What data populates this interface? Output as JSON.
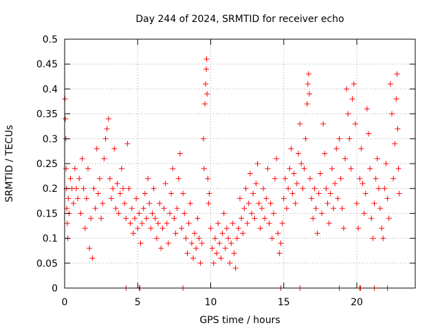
{
  "chart_data": {
    "type": "scatter",
    "title": "Day 244 of 2024, SRMTID for receiver echo",
    "xlabel": "GPS time / hours",
    "ylabel": "SRMTID / TECUs",
    "xlim": [
      0,
      24
    ],
    "ylim": [
      0,
      0.5
    ],
    "grid": true,
    "marker": "+",
    "color": "#ff0000",
    "x_ticks": [
      0,
      5,
      10,
      15,
      20
    ],
    "x_tick_labels": [
      "0",
      "5",
      "10",
      "15",
      "20"
    ],
    "y_ticks": [
      0,
      0.05,
      0.1,
      0.15,
      0.2,
      0.25,
      0.3,
      0.35,
      0.4,
      0.45,
      0.5
    ],
    "y_tick_labels": [
      "0",
      "0.05",
      "0.1",
      "0.15",
      "0.2",
      "0.25",
      "0.3",
      "0.35",
      "0.4",
      "0.45",
      "0.5"
    ],
    "series": [
      {
        "name": "SRMTID",
        "points": [
          [
            0.02,
            0.38
          ],
          [
            0.05,
            0.34
          ],
          [
            0.08,
            0.3
          ],
          [
            0.1,
            0.24
          ],
          [
            0.13,
            0.2
          ],
          [
            0.15,
            0.16
          ],
          [
            0.18,
            0.13
          ],
          [
            0.22,
            0.1
          ],
          [
            0.25,
            0.18
          ],
          [
            0.3,
            0.15
          ],
          [
            0.4,
            0.22
          ],
          [
            0.5,
            0.2
          ],
          [
            0.6,
            0.17
          ],
          [
            0.7,
            0.24
          ],
          [
            0.8,
            0.2
          ],
          [
            0.9,
            0.18
          ],
          [
            1.0,
            0.22
          ],
          [
            1.1,
            0.15
          ],
          [
            1.2,
            0.26
          ],
          [
            1.3,
            0.2
          ],
          [
            1.4,
            0.12
          ],
          [
            1.5,
            0.18
          ],
          [
            1.6,
            0.24
          ],
          [
            1.7,
            0.08
          ],
          [
            1.8,
            0.14
          ],
          [
            1.9,
            0.06
          ],
          [
            2.0,
            0.2
          ],
          [
            2.1,
            0.16
          ],
          [
            2.2,
            0.28
          ],
          [
            2.3,
            0.19
          ],
          [
            2.4,
            0.22
          ],
          [
            2.5,
            0.14
          ],
          [
            2.6,
            0.17
          ],
          [
            2.7,
            0.26
          ],
          [
            2.8,
            0.3
          ],
          [
            2.9,
            0.32
          ],
          [
            3.0,
            0.34
          ],
          [
            3.1,
            0.22
          ],
          [
            3.2,
            0.18
          ],
          [
            3.3,
            0.2
          ],
          [
            3.4,
            0.28
          ],
          [
            3.5,
            0.16
          ],
          [
            3.6,
            0.21
          ],
          [
            3.7,
            0.15
          ],
          [
            3.8,
            0.19
          ],
          [
            3.9,
            0.24
          ],
          [
            4.0,
            0.2
          ],
          [
            4.1,
            0.17
          ],
          [
            4.2,
            0.14
          ],
          [
            4.3,
            0.29
          ],
          [
            4.4,
            0.2
          ],
          [
            4.5,
            0.13
          ],
          [
            4.6,
            0.16
          ],
          [
            4.7,
            0.11
          ],
          [
            4.8,
            0.14
          ],
          [
            4.9,
            0.18
          ],
          [
            5.0,
            0.12
          ],
          [
            5.1,
            0.15
          ],
          [
            5.2,
            0.09
          ],
          [
            5.3,
            0.13
          ],
          [
            5.4,
            0.16
          ],
          [
            5.5,
            0.19
          ],
          [
            5.6,
            0.14
          ],
          [
            5.7,
            0.22
          ],
          [
            5.8,
            0.17
          ],
          [
            5.9,
            0.12
          ],
          [
            6.0,
            0.15
          ],
          [
            6.1,
            0.2
          ],
          [
            6.2,
            0.14
          ],
          [
            6.3,
            0.1
          ],
          [
            6.4,
            0.13
          ],
          [
            6.5,
            0.17
          ],
          [
            6.6,
            0.08
          ],
          [
            6.7,
            0.12
          ],
          [
            6.8,
            0.16
          ],
          [
            6.9,
            0.21
          ],
          [
            7.0,
            0.13
          ],
          [
            7.1,
            0.09
          ],
          [
            7.2,
            0.15
          ],
          [
            7.3,
            0.19
          ],
          [
            7.4,
            0.24
          ],
          [
            7.5,
            0.14
          ],
          [
            7.6,
            0.11
          ],
          [
            7.7,
            0.16
          ],
          [
            7.8,
            0.22
          ],
          [
            7.9,
            0.27
          ],
          [
            8.0,
            0.12
          ],
          [
            8.1,
            0.19
          ],
          [
            8.2,
            0.15
          ],
          [
            8.3,
            0.1
          ],
          [
            8.4,
            0.07
          ],
          [
            8.5,
            0.13
          ],
          [
            8.6,
            0.17
          ],
          [
            8.7,
            0.09
          ],
          [
            8.8,
            0.06
          ],
          [
            8.9,
            0.11
          ],
          [
            9.0,
            0.08
          ],
          [
            9.1,
            0.14
          ],
          [
            9.2,
            0.1
          ],
          [
            9.3,
            0.05
          ],
          [
            9.4,
            0.09
          ],
          [
            9.5,
            0.3
          ],
          [
            9.55,
            0.24
          ],
          [
            9.6,
            0.37
          ],
          [
            9.65,
            0.41
          ],
          [
            9.7,
            0.44
          ],
          [
            9.72,
            0.46
          ],
          [
            9.75,
            0.39
          ],
          [
            9.8,
            0.22
          ],
          [
            9.85,
            0.17
          ],
          [
            9.9,
            0.19
          ],
          [
            10.0,
            0.12
          ],
          [
            10.1,
            0.08
          ],
          [
            10.2,
            0.05
          ],
          [
            10.3,
            0.1
          ],
          [
            10.4,
            0.07
          ],
          [
            10.5,
            0.13
          ],
          [
            10.6,
            0.09
          ],
          [
            10.7,
            0.06
          ],
          [
            10.8,
            0.11
          ],
          [
            10.9,
            0.15
          ],
          [
            11.0,
            0.08
          ],
          [
            11.1,
            0.12
          ],
          [
            11.2,
            0.1
          ],
          [
            11.3,
            0.05
          ],
          [
            11.4,
            0.09
          ],
          [
            11.5,
            0.13
          ],
          [
            11.6,
            0.07
          ],
          [
            11.7,
            0.04
          ],
          [
            11.8,
            0.1
          ],
          [
            11.9,
            0.12
          ],
          [
            12.0,
            0.18
          ],
          [
            12.1,
            0.14
          ],
          [
            12.2,
            0.11
          ],
          [
            12.3,
            0.16
          ],
          [
            12.4,
            0.2
          ],
          [
            12.5,
            0.13
          ],
          [
            12.6,
            0.17
          ],
          [
            12.7,
            0.23
          ],
          [
            12.8,
            0.15
          ],
          [
            12.9,
            0.19
          ],
          [
            13.0,
            0.14
          ],
          [
            13.1,
            0.21
          ],
          [
            13.2,
            0.25
          ],
          [
            13.3,
            0.17
          ],
          [
            13.4,
            0.12
          ],
          [
            13.5,
            0.16
          ],
          [
            13.6,
            0.2
          ],
          [
            13.7,
            0.14
          ],
          [
            13.8,
            0.18
          ],
          [
            13.9,
            0.24
          ],
          [
            14.0,
            0.13
          ],
          [
            14.1,
            0.17
          ],
          [
            14.2,
            0.1
          ],
          [
            14.3,
            0.15
          ],
          [
            14.4,
            0.22
          ],
          [
            14.5,
            0.26
          ],
          [
            14.6,
            0.11
          ],
          [
            14.7,
            0.07
          ],
          [
            14.8,
            0.09
          ],
          [
            14.9,
            0.13
          ],
          [
            15.0,
            0.18
          ],
          [
            15.1,
            0.22
          ],
          [
            15.2,
            0.16
          ],
          [
            15.3,
            0.2
          ],
          [
            15.4,
            0.24
          ],
          [
            15.5,
            0.28
          ],
          [
            15.6,
            0.19
          ],
          [
            15.7,
            0.23
          ],
          [
            15.8,
            0.17
          ],
          [
            15.9,
            0.21
          ],
          [
            16.0,
            0.27
          ],
          [
            16.1,
            0.33
          ],
          [
            16.2,
            0.25
          ],
          [
            16.3,
            0.2
          ],
          [
            16.4,
            0.24
          ],
          [
            16.5,
            0.3
          ],
          [
            16.6,
            0.37
          ],
          [
            16.65,
            0.41
          ],
          [
            16.7,
            0.43
          ],
          [
            16.75,
            0.39
          ],
          [
            16.8,
            0.22
          ],
          [
            16.9,
            0.18
          ],
          [
            17.0,
            0.14
          ],
          [
            17.1,
            0.2
          ],
          [
            17.2,
            0.16
          ],
          [
            17.3,
            0.11
          ],
          [
            17.4,
            0.19
          ],
          [
            17.5,
            0.23
          ],
          [
            17.6,
            0.15
          ],
          [
            17.7,
            0.33
          ],
          [
            17.8,
            0.27
          ],
          [
            17.9,
            0.2
          ],
          [
            18.0,
            0.17
          ],
          [
            18.1,
            0.13
          ],
          [
            18.2,
            0.19
          ],
          [
            18.3,
            0.24
          ],
          [
            18.4,
            0.16
          ],
          [
            18.5,
            0.21
          ],
          [
            18.6,
            0.28
          ],
          [
            18.7,
            0.18
          ],
          [
            18.8,
            0.3
          ],
          [
            18.9,
            0.22
          ],
          [
            19.0,
            0.16
          ],
          [
            19.1,
            0.12
          ],
          [
            19.2,
            0.26
          ],
          [
            19.3,
            0.4
          ],
          [
            19.4,
            0.35
          ],
          [
            19.5,
            0.3
          ],
          [
            19.6,
            0.24
          ],
          [
            19.7,
            0.38
          ],
          [
            19.8,
            0.41
          ],
          [
            19.9,
            0.33
          ],
          [
            20.0,
            0.17
          ],
          [
            20.1,
            0.12
          ],
          [
            20.2,
            0.22
          ],
          [
            20.3,
            0.28
          ],
          [
            20.4,
            0.21
          ],
          [
            20.5,
            0.15
          ],
          [
            20.6,
            0.19
          ],
          [
            20.7,
            0.36
          ],
          [
            20.8,
            0.31
          ],
          [
            20.9,
            0.24
          ],
          [
            21.0,
            0.14
          ],
          [
            21.1,
            0.1
          ],
          [
            21.2,
            0.17
          ],
          [
            21.3,
            0.22
          ],
          [
            21.4,
            0.26
          ],
          [
            21.5,
            0.2
          ],
          [
            21.6,
            0.16
          ],
          [
            21.7,
            0.12
          ],
          [
            21.8,
            0.1
          ],
          [
            21.9,
            0.2
          ],
          [
            22.0,
            0.25
          ],
          [
            22.1,
            0.18
          ],
          [
            22.2,
            0.14
          ],
          [
            22.3,
            0.41
          ],
          [
            22.4,
            0.35
          ],
          [
            22.5,
            0.22
          ],
          [
            22.6,
            0.29
          ],
          [
            22.7,
            0.38
          ],
          [
            22.75,
            0.43
          ],
          [
            22.8,
            0.32
          ],
          [
            22.85,
            0.24
          ],
          [
            22.9,
            0.19
          ],
          [
            4.2,
            0.0
          ],
          [
            5.1,
            0.0
          ],
          [
            5.15,
            0.0
          ],
          [
            8.1,
            0.0
          ],
          [
            14.8,
            0.0
          ],
          [
            16.1,
            0.0
          ],
          [
            18.8,
            0.0
          ],
          [
            20.2,
            0.0
          ],
          [
            20.25,
            0.0
          ],
          [
            21.2,
            0.0
          ],
          [
            22.1,
            0.0
          ]
        ]
      }
    ]
  }
}
